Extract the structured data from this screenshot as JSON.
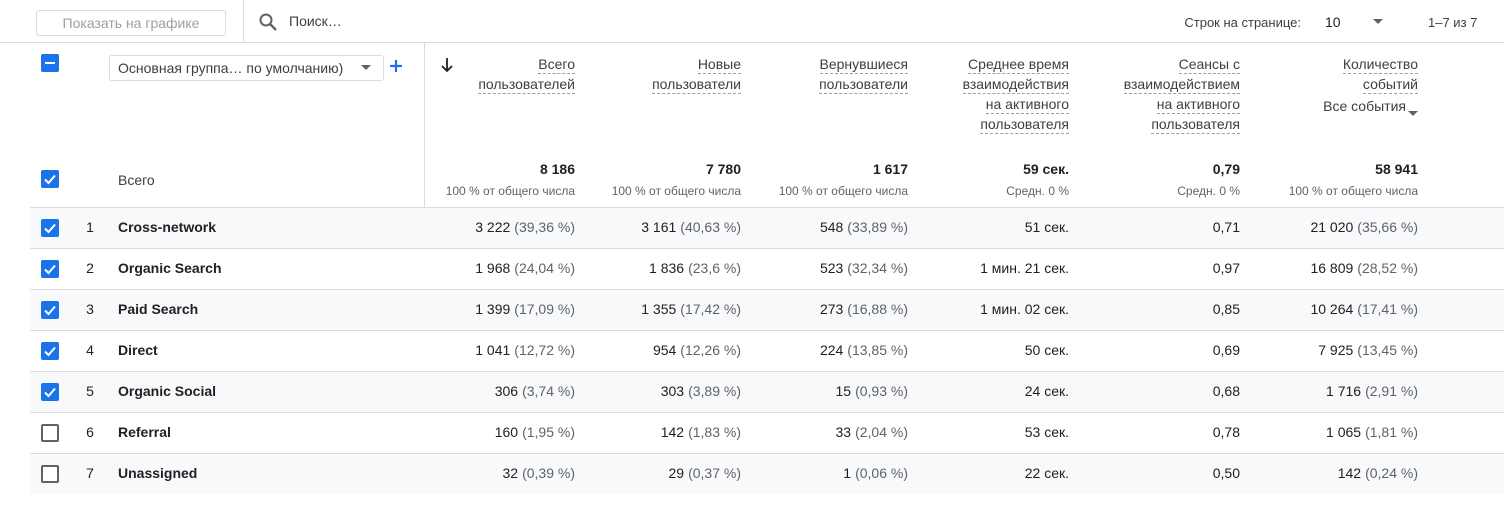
{
  "toolbar": {
    "show_on_chart": "Показать на графике",
    "search_placeholder": "Поиск…",
    "rows_per_page_label": "Строк на странице:",
    "rows_per_page": "10",
    "pagination": "1–7 из 7"
  },
  "table": {
    "select_all": "indeterminate",
    "dimension_select": "Основная группа… по умолчанию)",
    "columns": [
      {
        "lines": [
          "Всего",
          "пользователей"
        ]
      },
      {
        "lines": [
          "Новые",
          "пользователи"
        ]
      },
      {
        "lines": [
          "Вернувшиеся",
          "пользователи"
        ]
      },
      {
        "lines": [
          "Среднее время",
          "взаимодействия",
          "на активного",
          "пользователя"
        ]
      },
      {
        "lines": [
          "Сеансы с",
          "взаимодействием",
          "на активного",
          "пользователя"
        ]
      },
      {
        "lines": [
          "Количество",
          "событий"
        ],
        "filter": "Все события"
      }
    ],
    "totals": {
      "checked": true,
      "label": "Всего",
      "values": [
        {
          "value": "8 186",
          "note": "100 % от общего числа"
        },
        {
          "value": "7 780",
          "note": "100 % от общего числа"
        },
        {
          "value": "1 617",
          "note": "100 % от общего числа"
        },
        {
          "value": "59 сек.",
          "note": "Средн. 0 %"
        },
        {
          "value": "0,79",
          "note": "Средн. 0 %"
        },
        {
          "value": "58 941",
          "note": "100 % от общего числа"
        }
      ]
    },
    "rows": [
      {
        "checked": true,
        "index": "1",
        "name": "Cross-network",
        "cells": [
          [
            "3 222",
            "(39,36 %)"
          ],
          [
            "3 161",
            "(40,63 %)"
          ],
          [
            "548",
            "(33,89 %)"
          ],
          [
            "51 сек."
          ],
          [
            "0,71"
          ],
          [
            "21 020",
            "(35,66 %)"
          ]
        ]
      },
      {
        "checked": true,
        "index": "2",
        "name": "Organic Search",
        "cells": [
          [
            "1 968",
            "(24,04 %)"
          ],
          [
            "1 836",
            "(23,6 %)"
          ],
          [
            "523",
            "(32,34 %)"
          ],
          [
            "1 мин. 21 сек."
          ],
          [
            "0,97"
          ],
          [
            "16 809",
            "(28,52 %)"
          ]
        ]
      },
      {
        "checked": true,
        "index": "3",
        "name": "Paid Search",
        "cells": [
          [
            "1 399",
            "(17,09 %)"
          ],
          [
            "1 355",
            "(17,42 %)"
          ],
          [
            "273",
            "(16,88 %)"
          ],
          [
            "1 мин. 02 сек."
          ],
          [
            "0,85"
          ],
          [
            "10 264",
            "(17,41 %)"
          ]
        ]
      },
      {
        "checked": true,
        "index": "4",
        "name": "Direct",
        "cells": [
          [
            "1 041",
            "(12,72 %)"
          ],
          [
            "954",
            "(12,26 %)"
          ],
          [
            "224",
            "(13,85 %)"
          ],
          [
            "50 сек."
          ],
          [
            "0,69"
          ],
          [
            "7 925",
            "(13,45 %)"
          ]
        ]
      },
      {
        "checked": true,
        "index": "5",
        "name": "Organic Social",
        "cells": [
          [
            "306",
            "(3,74 %)"
          ],
          [
            "303",
            "(3,89 %)"
          ],
          [
            "15",
            "(0,93 %)"
          ],
          [
            "24 сек."
          ],
          [
            "0,68"
          ],
          [
            "1 716",
            "(2,91 %)"
          ]
        ]
      },
      {
        "checked": false,
        "index": "6",
        "name": "Referral",
        "cells": [
          [
            "160",
            "(1,95 %)"
          ],
          [
            "142",
            "(1,83 %)"
          ],
          [
            "33",
            "(2,04 %)"
          ],
          [
            "53 сек."
          ],
          [
            "0,78"
          ],
          [
            "1 065",
            "(1,81 %)"
          ]
        ]
      },
      {
        "checked": false,
        "index": "7",
        "name": "Unassigned",
        "cells": [
          [
            "32",
            "(0,39 %)"
          ],
          [
            "29",
            "(0,37 %)"
          ],
          [
            "1",
            "(0,06 %)"
          ],
          [
            "22 сек."
          ],
          [
            "0,50"
          ],
          [
            "142",
            "(0,24 %)"
          ]
        ]
      }
    ]
  }
}
